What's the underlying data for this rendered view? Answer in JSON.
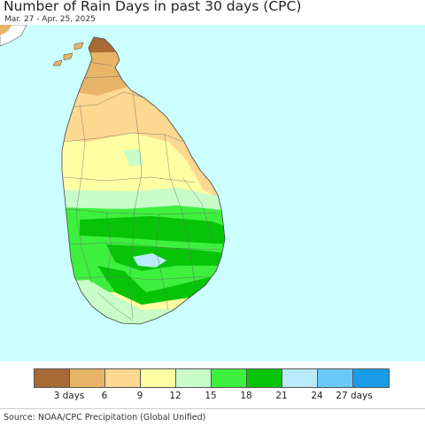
{
  "title": "Number of Rain Days in past 30 days (CPC)",
  "subtitle": "Mar. 27 - Apr. 25, 2025",
  "colors": {
    "ocean": "#ccffff",
    "land_outside": "#ffffff",
    "boundary": "#555555"
  },
  "legend": {
    "swatches": [
      {
        "color": "#a86a35"
      },
      {
        "color": "#e8b468"
      },
      {
        "color": "#fcd890"
      },
      {
        "color": "#fefea2"
      },
      {
        "color": "#c8fcc8"
      },
      {
        "color": "#3ef03e"
      },
      {
        "color": "#08c408"
      },
      {
        "color": "#b8ecfa"
      },
      {
        "color": "#68c8f8"
      },
      {
        "color": "#1a9ce8"
      }
    ],
    "ticks": [
      "3 days",
      "6",
      "9",
      "12",
      "15",
      "18",
      "21",
      "24",
      "27 days"
    ]
  },
  "source": "Source: NOAA/CPC Precipitation (Global Unified)"
}
